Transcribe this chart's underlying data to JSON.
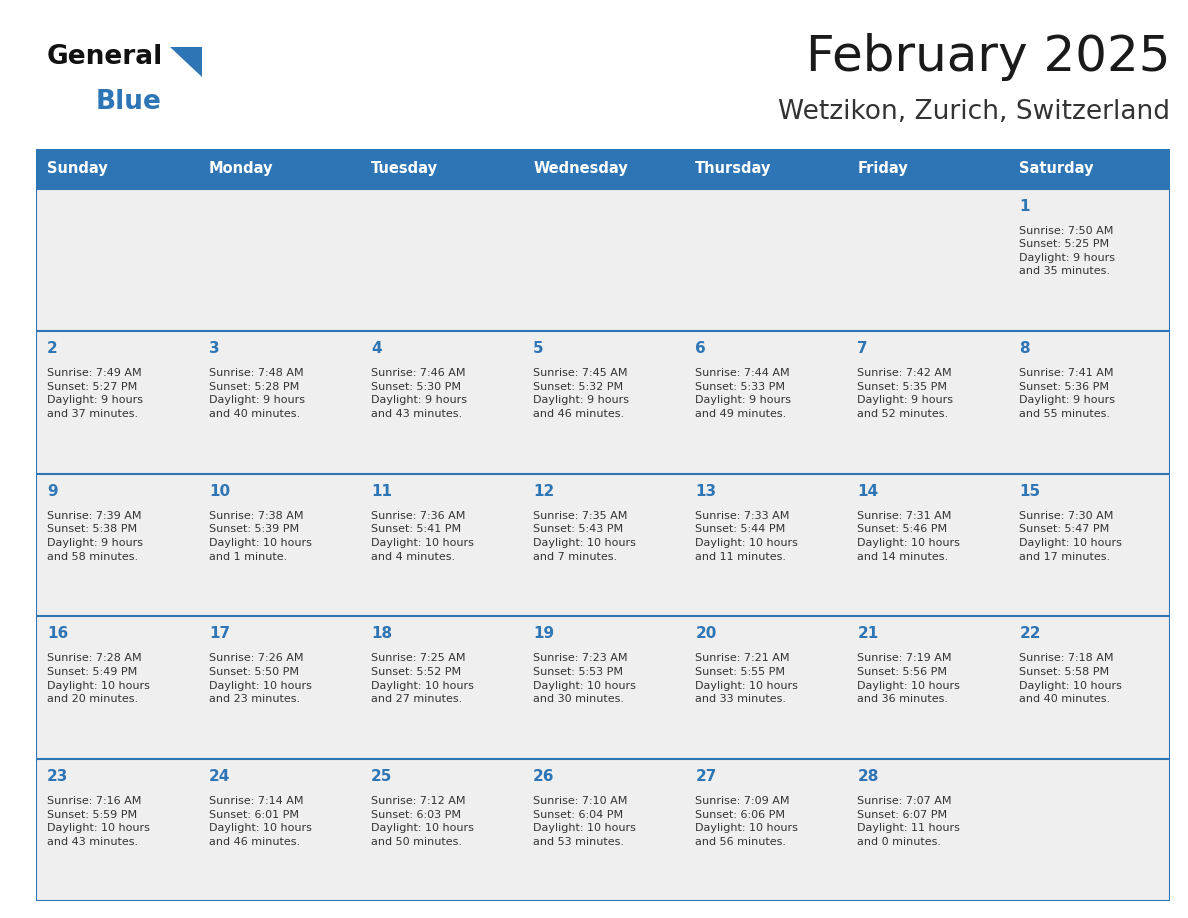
{
  "title": "February 2025",
  "subtitle": "Wetzikon, Zurich, Switzerland",
  "header_bg": "#2E75B6",
  "header_text": "#FFFFFF",
  "cell_bg": "#EFEFEF",
  "border_color": "#2E75B6",
  "day_headers": [
    "Sunday",
    "Monday",
    "Tuesday",
    "Wednesday",
    "Thursday",
    "Friday",
    "Saturday"
  ],
  "title_color": "#1a1a1a",
  "subtitle_color": "#333333",
  "day_num_color": "#2E75B6",
  "cell_text_color": "#333333",
  "calendar": [
    [
      null,
      null,
      null,
      null,
      null,
      null,
      {
        "day": "1",
        "sunrise": "7:50 AM",
        "sunset": "5:25 PM",
        "daylight": "9 hours\nand 35 minutes."
      }
    ],
    [
      {
        "day": "2",
        "sunrise": "7:49 AM",
        "sunset": "5:27 PM",
        "daylight": "9 hours\nand 37 minutes."
      },
      {
        "day": "3",
        "sunrise": "7:48 AM",
        "sunset": "5:28 PM",
        "daylight": "9 hours\nand 40 minutes."
      },
      {
        "day": "4",
        "sunrise": "7:46 AM",
        "sunset": "5:30 PM",
        "daylight": "9 hours\nand 43 minutes."
      },
      {
        "day": "5",
        "sunrise": "7:45 AM",
        "sunset": "5:32 PM",
        "daylight": "9 hours\nand 46 minutes."
      },
      {
        "day": "6",
        "sunrise": "7:44 AM",
        "sunset": "5:33 PM",
        "daylight": "9 hours\nand 49 minutes."
      },
      {
        "day": "7",
        "sunrise": "7:42 AM",
        "sunset": "5:35 PM",
        "daylight": "9 hours\nand 52 minutes."
      },
      {
        "day": "8",
        "sunrise": "7:41 AM",
        "sunset": "5:36 PM",
        "daylight": "9 hours\nand 55 minutes."
      }
    ],
    [
      {
        "day": "9",
        "sunrise": "7:39 AM",
        "sunset": "5:38 PM",
        "daylight": "9 hours\nand 58 minutes."
      },
      {
        "day": "10",
        "sunrise": "7:38 AM",
        "sunset": "5:39 PM",
        "daylight": "10 hours\nand 1 minute."
      },
      {
        "day": "11",
        "sunrise": "7:36 AM",
        "sunset": "5:41 PM",
        "daylight": "10 hours\nand 4 minutes."
      },
      {
        "day": "12",
        "sunrise": "7:35 AM",
        "sunset": "5:43 PM",
        "daylight": "10 hours\nand 7 minutes."
      },
      {
        "day": "13",
        "sunrise": "7:33 AM",
        "sunset": "5:44 PM",
        "daylight": "10 hours\nand 11 minutes."
      },
      {
        "day": "14",
        "sunrise": "7:31 AM",
        "sunset": "5:46 PM",
        "daylight": "10 hours\nand 14 minutes."
      },
      {
        "day": "15",
        "sunrise": "7:30 AM",
        "sunset": "5:47 PM",
        "daylight": "10 hours\nand 17 minutes."
      }
    ],
    [
      {
        "day": "16",
        "sunrise": "7:28 AM",
        "sunset": "5:49 PM",
        "daylight": "10 hours\nand 20 minutes."
      },
      {
        "day": "17",
        "sunrise": "7:26 AM",
        "sunset": "5:50 PM",
        "daylight": "10 hours\nand 23 minutes."
      },
      {
        "day": "18",
        "sunrise": "7:25 AM",
        "sunset": "5:52 PM",
        "daylight": "10 hours\nand 27 minutes."
      },
      {
        "day": "19",
        "sunrise": "7:23 AM",
        "sunset": "5:53 PM",
        "daylight": "10 hours\nand 30 minutes."
      },
      {
        "day": "20",
        "sunrise": "7:21 AM",
        "sunset": "5:55 PM",
        "daylight": "10 hours\nand 33 minutes."
      },
      {
        "day": "21",
        "sunrise": "7:19 AM",
        "sunset": "5:56 PM",
        "daylight": "10 hours\nand 36 minutes."
      },
      {
        "day": "22",
        "sunrise": "7:18 AM",
        "sunset": "5:58 PM",
        "daylight": "10 hours\nand 40 minutes."
      }
    ],
    [
      {
        "day": "23",
        "sunrise": "7:16 AM",
        "sunset": "5:59 PM",
        "daylight": "10 hours\nand 43 minutes."
      },
      {
        "day": "24",
        "sunrise": "7:14 AM",
        "sunset": "6:01 PM",
        "daylight": "10 hours\nand 46 minutes."
      },
      {
        "day": "25",
        "sunrise": "7:12 AM",
        "sunset": "6:03 PM",
        "daylight": "10 hours\nand 50 minutes."
      },
      {
        "day": "26",
        "sunrise": "7:10 AM",
        "sunset": "6:04 PM",
        "daylight": "10 hours\nand 53 minutes."
      },
      {
        "day": "27",
        "sunrise": "7:09 AM",
        "sunset": "6:06 PM",
        "daylight": "10 hours\nand 56 minutes."
      },
      {
        "day": "28",
        "sunrise": "7:07 AM",
        "sunset": "6:07 PM",
        "daylight": "11 hours\nand 0 minutes."
      },
      null
    ]
  ]
}
